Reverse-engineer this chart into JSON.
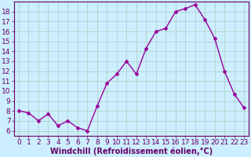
{
  "x": [
    0,
    1,
    2,
    3,
    4,
    5,
    6,
    7,
    8,
    9,
    10,
    11,
    12,
    13,
    14,
    15,
    16,
    17,
    18,
    19,
    20,
    21,
    22,
    23
  ],
  "y": [
    8.0,
    7.8,
    7.0,
    7.7,
    6.5,
    7.0,
    6.3,
    6.0,
    8.5,
    10.8,
    11.7,
    13.0,
    11.7,
    14.3,
    16.0,
    16.3,
    18.0,
    18.3,
    18.7,
    17.2,
    15.3,
    12.0,
    9.7,
    8.3
  ],
  "line_color": "#990099",
  "marker": "D",
  "marker_size": 2.0,
  "bg_color": "#cceeff",
  "grid_color": "#aaccbb",
  "xlabel": "Windchill (Refroidissement éolien,°C)",
  "xlabel_color": "#660066",
  "tick_color": "#660066",
  "axis_color": "#660066",
  "ylim": [
    5.5,
    19.0
  ],
  "xlim": [
    -0.5,
    23.5
  ],
  "yticks": [
    6,
    7,
    8,
    9,
    10,
    11,
    12,
    13,
    14,
    15,
    16,
    17,
    18
  ],
  "xticks": [
    0,
    1,
    2,
    3,
    4,
    5,
    6,
    7,
    8,
    9,
    10,
    11,
    12,
    13,
    14,
    15,
    16,
    17,
    18,
    19,
    20,
    21,
    22,
    23
  ],
  "font_size": 6.5,
  "xlabel_font_size": 7.0,
  "linewidth": 1.0
}
